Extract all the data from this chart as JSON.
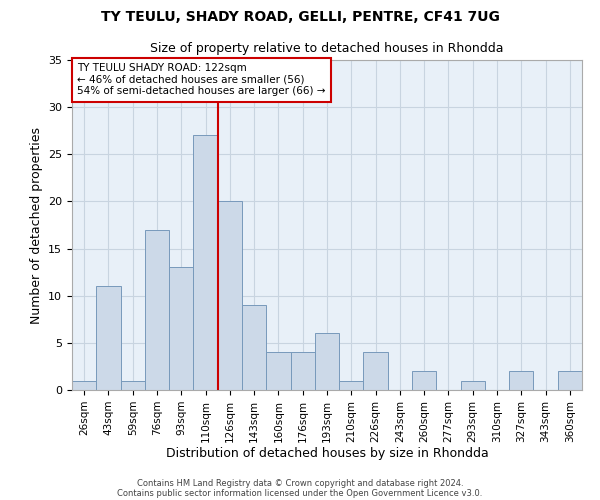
{
  "title": "TY TEULU, SHADY ROAD, GELLI, PENTRE, CF41 7UG",
  "subtitle": "Size of property relative to detached houses in Rhondda",
  "xlabel": "Distribution of detached houses by size in Rhondda",
  "ylabel": "Number of detached properties",
  "bar_color": "#ccd9e8",
  "bar_edge_color": "#7799bb",
  "categories": [
    "26sqm",
    "43sqm",
    "59sqm",
    "76sqm",
    "93sqm",
    "110sqm",
    "126sqm",
    "143sqm",
    "160sqm",
    "176sqm",
    "193sqm",
    "210sqm",
    "226sqm",
    "243sqm",
    "260sqm",
    "277sqm",
    "293sqm",
    "310sqm",
    "327sqm",
    "343sqm",
    "360sqm"
  ],
  "values": [
    1,
    11,
    1,
    17,
    13,
    27,
    20,
    9,
    4,
    4,
    6,
    1,
    4,
    0,
    2,
    0,
    1,
    0,
    2,
    0,
    2
  ],
  "ylim": [
    0,
    35
  ],
  "annotation_title": "TY TEULU SHADY ROAD: 122sqm",
  "annotation_line1": "← 46% of detached houses are smaller (56)",
  "annotation_line2": "54% of semi-detached houses are larger (66) →",
  "footer1": "Contains HM Land Registry data © Crown copyright and database right 2024.",
  "footer2": "Contains public sector information licensed under the Open Government Licence v3.0.",
  "vline_color": "#cc0000",
  "annotation_box_edge": "#cc0000",
  "background_color": "#ffffff",
  "grid_color": "#c8d4e0",
  "vline_index": 6
}
